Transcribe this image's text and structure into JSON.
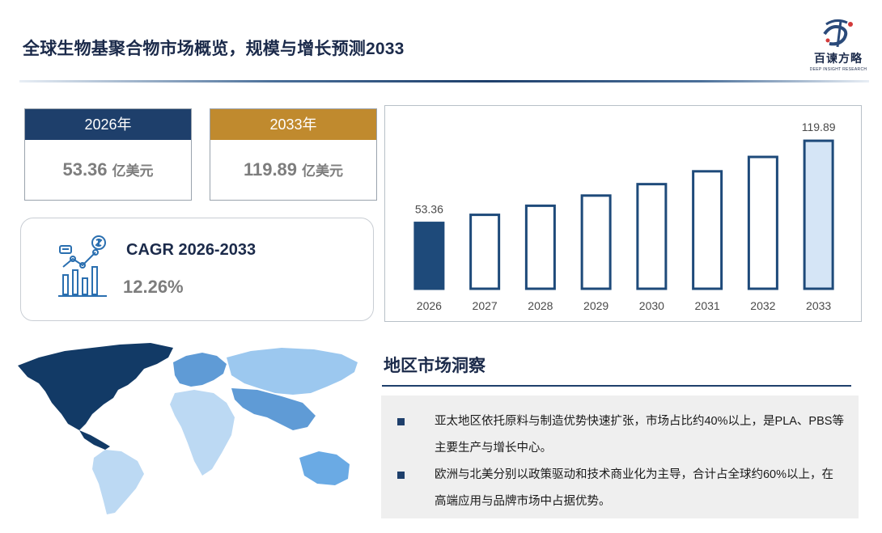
{
  "header": {
    "title": "全球生物基聚合物市场概览，规模与增长预测2033"
  },
  "logo": {
    "name_cn": "百谏方略",
    "name_en": "DEEP INSIGHT RESEARCH",
    "icon": "logo-mark-icon"
  },
  "kpis": [
    {
      "year_label": "2026年",
      "value": "53.36",
      "unit": "亿美元",
      "color": "#1e3f6b"
    },
    {
      "year_label": "2033年",
      "value": "119.89",
      "unit": "亿美元",
      "color": "#c08a2e"
    }
  ],
  "cagr": {
    "label": "CAGR 2026-2033",
    "value": "12.26%",
    "icon": "growth-chart-icon"
  },
  "chart_data": {
    "type": "bar",
    "categories": [
      "2026",
      "2027",
      "2028",
      "2029",
      "2030",
      "2031",
      "2032",
      "2033"
    ],
    "values": [
      53.36,
      59.9,
      67.25,
      75.5,
      84.76,
      95.15,
      106.8,
      119.89
    ],
    "data_labels": [
      "53.36",
      "",
      "",
      "",
      "",
      "",
      "",
      "119.89"
    ],
    "ylim": [
      0,
      135
    ],
    "colors": {
      "first": "#1e4a7a",
      "last": "#d5e5f6",
      "middle": "#ffffff",
      "stroke": "#1e4a7a"
    },
    "grid": false,
    "legend": "none"
  },
  "region": {
    "title": "地区市场洞察",
    "map_icon": "world-map-icon",
    "colors": {
      "north_america": "#123a66",
      "south_america": "#bcd9f3",
      "europe": "#5f9bd6",
      "africa": "#bcd9f3",
      "asia": "#9cc8ef",
      "south_asia": "#5f9bd6",
      "oceania": "#6aaae4"
    },
    "bullets": [
      "亚太地区依托原料与制造优势快速扩张，市场占比约40%以上，是PLA、PBS等主要生产与增长中心。",
      "欧洲与北美分别以政策驱动和技术商业化为主导，合计占全球约60%以上，在高端应用与品牌市场中占据优势。"
    ]
  }
}
